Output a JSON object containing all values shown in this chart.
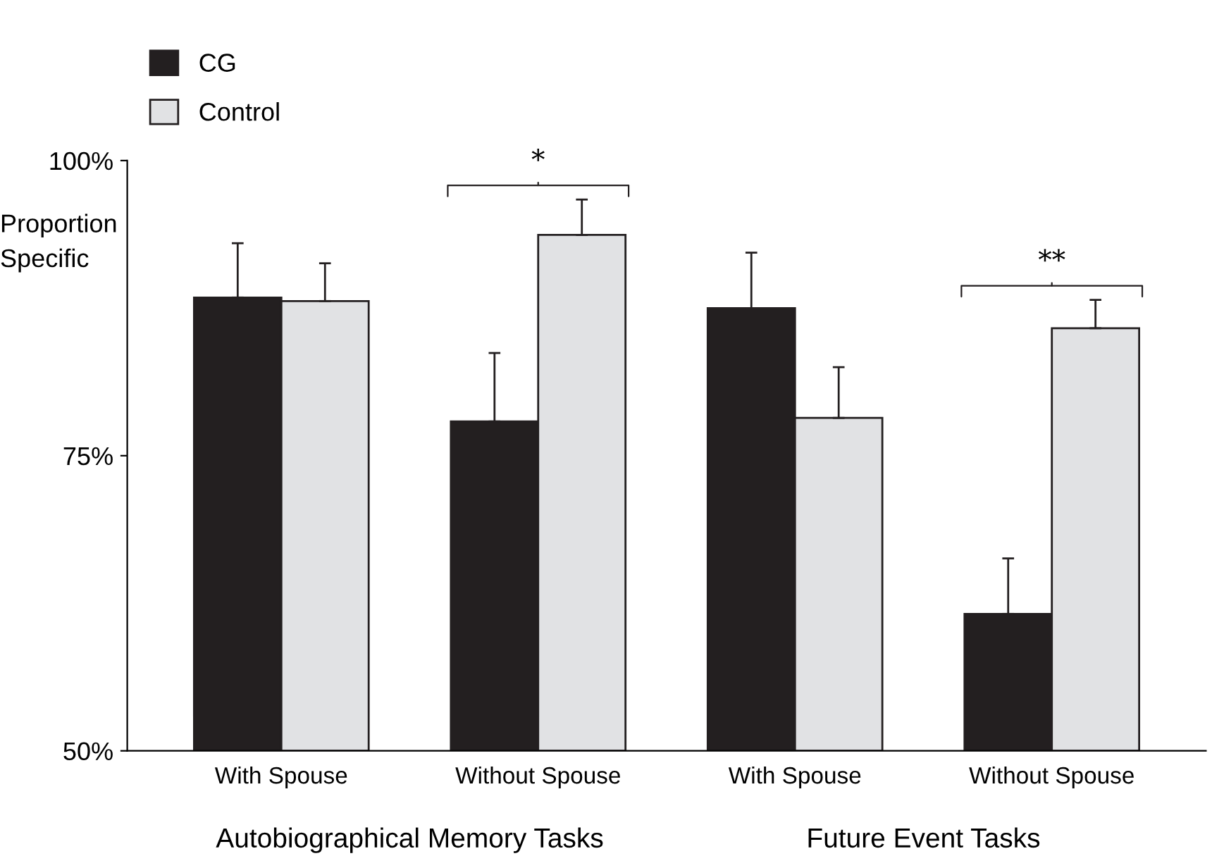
{
  "chart_data": {
    "type": "bar",
    "ylabel": "Proportion Specific",
    "categories": [
      "With Spouse",
      "Without Spouse",
      "With Spouse",
      "Without Spouse"
    ],
    "series": [
      {
        "name": "CG",
        "color": "#231f20",
        "values": [
          88.4,
          77.9,
          87.5,
          61.6
        ],
        "errors": [
          [
            88.4,
            93.0
          ],
          [
            77.9,
            83.7
          ],
          [
            87.5,
            92.2
          ],
          [
            61.6,
            66.3
          ]
        ]
      },
      {
        "name": "Control",
        "color": "#e1e2e4",
        "values": [
          88.1,
          93.7,
          78.2,
          85.8
        ],
        "errors": [
          [
            88.1,
            91.3
          ],
          [
            93.7,
            96.7
          ],
          [
            78.2,
            82.5
          ],
          [
            85.8,
            88.2
          ]
        ]
      }
    ],
    "ylim": [
      50,
      100
    ],
    "yticks": [
      {
        "value": 50,
        "label": "50%"
      },
      {
        "value": 75,
        "label": "75%"
      },
      {
        "value": 100,
        "label": "100%"
      }
    ],
    "annotations": [
      "*",
      "**",
      "Autobiographical Memory Tasks",
      "Future Event Tasks"
    ],
    "legend": "top left",
    "grid": false
  }
}
